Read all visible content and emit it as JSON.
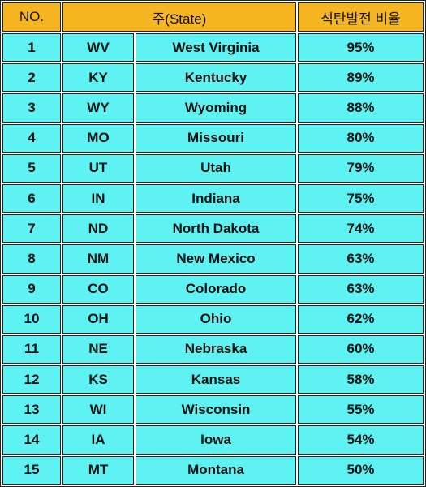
{
  "table": {
    "header": [
      "NO.",
      "주(State)",
      "석탄발전 비율"
    ],
    "rows": [
      [
        "1",
        "WV",
        "West Virginia",
        "95%"
      ],
      [
        "2",
        "KY",
        "Kentucky",
        "89%"
      ],
      [
        "3",
        "WY",
        "Wyoming",
        "88%"
      ],
      [
        "4",
        "MO",
        "Missouri",
        "80%"
      ],
      [
        "5",
        "UT",
        "Utah",
        "79%"
      ],
      [
        "6",
        "IN",
        "Indiana",
        "75%"
      ],
      [
        "7",
        "ND",
        "North Dakota",
        "74%"
      ],
      [
        "8",
        "NM",
        "New Mexico",
        "63%"
      ],
      [
        "9",
        "CO",
        "Colorado",
        "63%"
      ],
      [
        "10",
        "OH",
        "Ohio",
        "62%"
      ],
      [
        "11",
        "NE",
        "Nebraska",
        "60%"
      ],
      [
        "12",
        "KS",
        "Kansas",
        "58%"
      ],
      [
        "13",
        "WI",
        "Wisconsin",
        "55%"
      ],
      [
        "14",
        "IA",
        "Iowa",
        "54%"
      ],
      [
        "15",
        "MT",
        "Montana",
        "50%"
      ]
    ]
  }
}
